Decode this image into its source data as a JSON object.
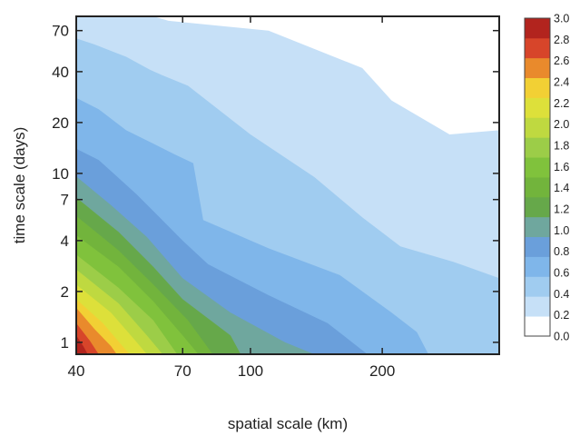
{
  "chart_data": {
    "type": "heatmap",
    "title": "",
    "xlabel": "spatial scale (km)",
    "ylabel": "time scale (days)",
    "x_scale": "log",
    "y_scale": "log",
    "xlim": [
      40,
      370
    ],
    "ylim": [
      0.85,
      85
    ],
    "x_ticks": [
      {
        "value": 40,
        "label": "40"
      },
      {
        "value": 70,
        "label": "70"
      },
      {
        "value": 100,
        "label": "100"
      },
      {
        "value": 200,
        "label": "200"
      }
    ],
    "y_ticks": [
      {
        "value": 1,
        "label": "1"
      },
      {
        "value": 2,
        "label": "2"
      },
      {
        "value": 4,
        "label": "4"
      },
      {
        "value": 7,
        "label": "7"
      },
      {
        "value": 10,
        "label": "10"
      },
      {
        "value": 20,
        "label": "20"
      },
      {
        "value": 40,
        "label": "40"
      },
      {
        "value": 70,
        "label": "70"
      }
    ],
    "colorbar": {
      "range": [
        0,
        3
      ],
      "labels": [
        "3.0",
        "2.8",
        "2.6",
        "2.4",
        "2.2",
        "2.0",
        "1.8",
        "1.6",
        "1.4",
        "1.2",
        "1.0",
        "0.8",
        "0.6",
        "0.4",
        "0.2",
        "0.0"
      ],
      "colors": [
        "#ffffff",
        "#c6e0f7",
        "#a0ccf0",
        "#7fb6ea",
        "#6a9fdb",
        "#6fa79e",
        "#66a84a",
        "#72b43c",
        "#80c23c",
        "#9ccd48",
        "#bfd940",
        "#dde03a",
        "#f2d034",
        "#e98a2c",
        "#d7452a",
        "#b2241e"
      ]
    },
    "contour_levels": [
      {
        "level": 0.2,
        "boundary": [
          [
            40,
            85
          ],
          [
            60,
            85
          ],
          [
            65,
            80
          ],
          [
            110,
            70
          ],
          [
            180,
            42
          ],
          [
            210,
            27
          ],
          [
            285,
            17
          ],
          [
            370,
            18
          ]
        ]
      },
      {
        "level": 0.4,
        "boundary": [
          [
            40,
            63
          ],
          [
            44,
            58
          ],
          [
            52,
            49
          ],
          [
            59,
            41
          ],
          [
            63,
            38
          ],
          [
            72,
            33
          ],
          [
            100,
            17
          ],
          [
            140,
            9.5
          ],
          [
            180,
            5.5
          ],
          [
            220,
            3.7
          ],
          [
            290,
            3
          ],
          [
            370,
            2.4
          ]
        ]
      },
      {
        "level": 0.6,
        "boundary": [
          [
            40,
            28
          ],
          [
            45,
            24
          ],
          [
            52,
            18
          ],
          [
            60,
            15
          ],
          [
            67,
            13
          ],
          [
            74,
            11.5
          ],
          [
            78,
            5.3
          ],
          [
            110,
            3.6
          ],
          [
            160,
            2.5
          ],
          [
            210,
            1.5
          ],
          [
            240,
            1.15
          ],
          [
            255,
            0.85
          ]
        ]
      },
      {
        "level": 0.8,
        "boundary": [
          [
            40,
            14
          ],
          [
            45,
            12
          ],
          [
            55,
            7.5
          ],
          [
            62,
            5.5
          ],
          [
            70,
            4
          ],
          [
            80,
            2.9
          ],
          [
            110,
            1.9
          ],
          [
            150,
            1.3
          ],
          [
            185,
            0.85
          ]
        ]
      },
      {
        "level": 1.0,
        "boundary": [
          [
            40,
            9.6
          ],
          [
            48,
            6.5
          ],
          [
            58,
            4.2
          ],
          [
            70,
            2.4
          ],
          [
            90,
            1.5
          ],
          [
            120,
            1
          ],
          [
            140,
            0.85
          ]
        ]
      },
      {
        "level": 1.2,
        "boundary": [
          [
            40,
            7.2
          ],
          [
            50,
            4.5
          ],
          [
            60,
            2.8
          ],
          [
            70,
            1.8
          ],
          [
            90,
            1.1
          ],
          [
            95,
            0.85
          ]
        ]
      },
      {
        "level": 1.4,
        "boundary": [
          [
            40,
            5.6
          ],
          [
            50,
            3.5
          ],
          [
            60,
            2.2
          ],
          [
            72,
            1.35
          ],
          [
            82,
            0.85
          ]
        ]
      },
      {
        "level": 1.6,
        "boundary": [
          [
            40,
            4.3
          ],
          [
            50,
            2.8
          ],
          [
            60,
            1.75
          ],
          [
            70,
            1.1
          ],
          [
            76,
            0.85
          ]
        ]
      },
      {
        "level": 1.8,
        "boundary": [
          [
            40,
            3.3
          ],
          [
            50,
            2.1
          ],
          [
            60,
            1.35
          ],
          [
            68,
            0.85
          ]
        ]
      },
      {
        "level": 2.0,
        "boundary": [
          [
            40,
            2.7
          ],
          [
            50,
            1.7
          ],
          [
            58,
            1.1
          ],
          [
            63,
            0.85
          ]
        ]
      },
      {
        "level": 2.2,
        "boundary": [
          [
            40,
            2.2
          ],
          [
            48,
            1.5
          ],
          [
            55,
            1.0
          ],
          [
            58,
            0.85
          ]
        ]
      },
      {
        "level": 2.4,
        "boundary": [
          [
            40,
            1.8
          ],
          [
            46,
            1.3
          ],
          [
            51,
            0.95
          ],
          [
            53,
            0.85
          ]
        ]
      },
      {
        "level": 2.6,
        "boundary": [
          [
            40,
            1.6
          ],
          [
            44,
            1.2
          ],
          [
            48,
            0.95
          ],
          [
            49.5,
            0.85
          ]
        ]
      },
      {
        "level": 2.8,
        "boundary": [
          [
            40,
            1.3
          ],
          [
            43,
            1.02
          ],
          [
            45,
            0.85
          ]
        ]
      },
      {
        "level": 3.0,
        "boundary": [
          [
            40,
            1.1
          ],
          [
            41.5,
            0.95
          ],
          [
            42.5,
            0.85
          ]
        ]
      }
    ]
  }
}
